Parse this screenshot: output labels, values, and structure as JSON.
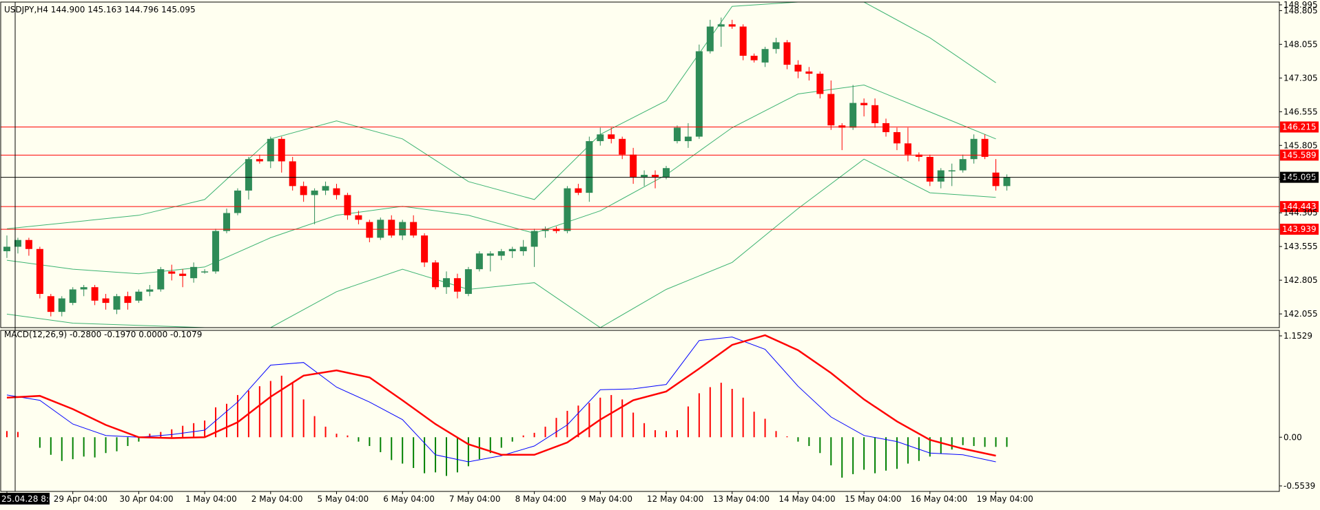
{
  "colors": {
    "background": "#fffff0",
    "bull": "#2e8b57",
    "bear": "#ff0000",
    "band": "#3cb371",
    "hline_red": "#ff0000",
    "hline_black": "#000000",
    "macd_line": "#0000ff",
    "signal_line": "#ff0000",
    "hist_pos": "#ff0000",
    "hist_neg": "#008000",
    "label_bg_red": "#ff0000",
    "label_bg_black": "#000000",
    "label_text": "#ffffff"
  },
  "chart_data": [
    {
      "type": "candlestick",
      "title": "USDJPY,H4  144.900 145.163 144.796 145.095",
      "ylim": [
        141.75,
        148.995
      ],
      "price_ticks": [
        "148.995",
        "148.805",
        "148.055",
        "147.305",
        "146.555",
        "145.805",
        "145.055",
        "144.305",
        "143.555",
        "142.805",
        "142.055"
      ],
      "x_labels": [
        {
          "i": 0,
          "label": "25.04.28 8:00"
        },
        {
          "i": 6,
          "label": "29 Apr 04:00"
        },
        {
          "i": 12,
          "label": "30 Apr 04:00"
        },
        {
          "i": 18,
          "label": "1 May 04:00"
        },
        {
          "i": 24,
          "label": "2 May 04:00"
        },
        {
          "i": 30,
          "label": "5 May 04:00"
        },
        {
          "i": 36,
          "label": "6 May 04:00"
        },
        {
          "i": 42,
          "label": "7 May 04:00"
        },
        {
          "i": 48,
          "label": "8 May 04:00"
        },
        {
          "i": 54,
          "label": "9 May 04:00"
        },
        {
          "i": 60,
          "label": "12 May 04:00"
        },
        {
          "i": 66,
          "label": "13 May 04:00"
        },
        {
          "i": 72,
          "label": "14 May 04:00"
        },
        {
          "i": 78,
          "label": "15 May 04:00"
        },
        {
          "i": 84,
          "label": "16 May 04:00"
        },
        {
          "i": 90,
          "label": "19 May 04:00"
        }
      ],
      "ohlc": [
        [
          143.45,
          143.8,
          143.3,
          143.55
        ],
        [
          143.55,
          143.75,
          143.4,
          143.7
        ],
        [
          143.7,
          143.75,
          143.35,
          143.5
        ],
        [
          143.5,
          143.55,
          142.4,
          142.5
        ],
        [
          142.45,
          142.5,
          142.0,
          142.1
        ],
        [
          142.1,
          142.45,
          142.0,
          142.4
        ],
        [
          142.3,
          142.65,
          142.25,
          142.6
        ],
        [
          142.6,
          142.7,
          142.45,
          142.65
        ],
        [
          142.65,
          142.7,
          142.25,
          142.35
        ],
        [
          142.4,
          142.5,
          142.15,
          142.3
        ],
        [
          142.15,
          142.5,
          142.05,
          142.45
        ],
        [
          142.45,
          142.55,
          142.15,
          142.3
        ],
        [
          142.35,
          142.6,
          142.3,
          142.55
        ],
        [
          142.55,
          142.7,
          142.45,
          142.6
        ],
        [
          142.6,
          143.1,
          142.55,
          143.05
        ],
        [
          143.0,
          143.15,
          142.8,
          142.95
        ],
        [
          142.95,
          143.05,
          142.65,
          142.9
        ],
        [
          142.85,
          143.2,
          142.75,
          143.1
        ],
        [
          143.0,
          143.05,
          142.95,
          143.0
        ],
        [
          143.0,
          143.95,
          142.95,
          143.9
        ],
        [
          143.9,
          144.4,
          143.85,
          144.3
        ],
        [
          144.3,
          144.85,
          144.25,
          144.8
        ],
        [
          144.8,
          145.55,
          144.6,
          145.5
        ],
        [
          145.5,
          145.6,
          145.4,
          145.45
        ],
        [
          145.45,
          146.0,
          145.3,
          145.95
        ],
        [
          145.95,
          146.0,
          145.2,
          145.45
        ],
        [
          145.45,
          145.55,
          144.8,
          144.9
        ],
        [
          144.9,
          145.0,
          144.55,
          144.7
        ],
        [
          144.7,
          144.85,
          144.05,
          144.8
        ],
        [
          144.8,
          145.0,
          144.7,
          144.9
        ],
        [
          144.85,
          144.95,
          144.6,
          144.7
        ],
        [
          144.7,
          144.75,
          144.15,
          144.25
        ],
        [
          144.25,
          144.35,
          144.05,
          144.15
        ],
        [
          144.1,
          144.15,
          143.65,
          143.75
        ],
        [
          143.75,
          144.2,
          143.7,
          144.15
        ],
        [
          144.15,
          144.25,
          143.75,
          143.8
        ],
        [
          143.8,
          144.15,
          143.7,
          144.1
        ],
        [
          144.1,
          144.25,
          143.75,
          143.8
        ],
        [
          143.8,
          143.85,
          143.1,
          143.2
        ],
        [
          143.2,
          143.25,
          142.6,
          142.65
        ],
        [
          142.65,
          143.0,
          142.5,
          142.85
        ],
        [
          142.85,
          142.95,
          142.4,
          142.55
        ],
        [
          142.5,
          143.1,
          142.45,
          143.05
        ],
        [
          143.05,
          143.45,
          143.0,
          143.4
        ],
        [
          143.35,
          143.45,
          143.0,
          143.4
        ],
        [
          143.35,
          143.5,
          143.25,
          143.45
        ],
        [
          143.45,
          143.55,
          143.3,
          143.5
        ],
        [
          143.45,
          143.7,
          143.35,
          143.55
        ],
        [
          143.55,
          143.95,
          143.1,
          143.9
        ],
        [
          143.9,
          144.0,
          143.75,
          143.95
        ],
        [
          143.95,
          144.0,
          143.85,
          143.9
        ],
        [
          143.9,
          144.9,
          143.85,
          144.85
        ],
        [
          144.85,
          144.95,
          144.7,
          144.75
        ],
        [
          144.75,
          146.0,
          144.55,
          145.9
        ],
        [
          145.9,
          146.2,
          145.8,
          146.05
        ],
        [
          146.05,
          146.2,
          145.85,
          145.95
        ],
        [
          145.95,
          146.0,
          145.5,
          145.6
        ],
        [
          145.6,
          145.75,
          144.95,
          145.1
        ],
        [
          145.1,
          145.25,
          144.9,
          145.15
        ],
        [
          145.15,
          145.25,
          144.85,
          145.1
        ],
        [
          145.1,
          145.35,
          145.05,
          145.3
        ],
        [
          145.9,
          146.25,
          145.85,
          146.2
        ],
        [
          145.9,
          146.3,
          145.75,
          146.0
        ],
        [
          146.0,
          148.05,
          145.95,
          147.9
        ],
        [
          147.9,
          148.6,
          147.85,
          148.45
        ],
        [
          148.45,
          148.65,
          148.0,
          148.5
        ],
        [
          148.5,
          148.6,
          148.4,
          148.45
        ],
        [
          148.45,
          148.5,
          147.7,
          147.8
        ],
        [
          147.8,
          147.85,
          147.65,
          147.7
        ],
        [
          147.65,
          148.0,
          147.55,
          147.95
        ],
        [
          147.95,
          148.2,
          147.85,
          148.1
        ],
        [
          148.1,
          148.15,
          147.5,
          147.6
        ],
        [
          147.6,
          147.7,
          147.3,
          147.45
        ],
        [
          147.45,
          147.55,
          147.25,
          147.4
        ],
        [
          147.4,
          147.45,
          146.85,
          146.95
        ],
        [
          146.95,
          147.25,
          146.15,
          146.25
        ],
        [
          146.25,
          146.3,
          145.7,
          146.2
        ],
        [
          146.2,
          147.15,
          146.15,
          146.75
        ],
        [
          146.75,
          146.85,
          146.45,
          146.7
        ],
        [
          146.7,
          146.85,
          146.2,
          146.3
        ],
        [
          146.3,
          146.4,
          146.0,
          146.1
        ],
        [
          146.1,
          146.2,
          145.7,
          145.85
        ],
        [
          145.85,
          146.2,
          145.45,
          145.6
        ],
        [
          145.6,
          145.65,
          145.45,
          145.55
        ],
        [
          145.55,
          145.6,
          144.9,
          145.0
        ],
        [
          145.0,
          145.3,
          144.85,
          145.25
        ],
        [
          145.25,
          145.4,
          144.9,
          145.25
        ],
        [
          145.25,
          145.6,
          145.2,
          145.5
        ],
        [
          145.5,
          146.05,
          145.4,
          145.95
        ],
        [
          145.95,
          146.05,
          145.5,
          145.55
        ],
        [
          145.2,
          145.5,
          144.8,
          144.9
        ],
        [
          144.9,
          145.16,
          144.8,
          145.1
        ]
      ],
      "bollinger": {
        "upper": [
          [
            0,
            143.95
          ],
          [
            12,
            144.25
          ],
          [
            18,
            144.6
          ],
          [
            24,
            145.95
          ],
          [
            30,
            146.35
          ],
          [
            36,
            145.95
          ],
          [
            42,
            145.0
          ],
          [
            48,
            144.6
          ],
          [
            54,
            146.05
          ],
          [
            60,
            146.8
          ],
          [
            66,
            148.9
          ],
          [
            72,
            149.2
          ],
          [
            78,
            149.0
          ],
          [
            84,
            148.2
          ],
          [
            90,
            147.2
          ]
        ],
        "middle": [
          [
            0,
            143.25
          ],
          [
            6,
            143.05
          ],
          [
            12,
            142.95
          ],
          [
            18,
            143.1
          ],
          [
            24,
            143.75
          ],
          [
            30,
            144.25
          ],
          [
            36,
            144.45
          ],
          [
            42,
            144.25
          ],
          [
            48,
            143.85
          ],
          [
            54,
            144.35
          ],
          [
            60,
            145.15
          ],
          [
            66,
            146.2
          ],
          [
            72,
            146.95
          ],
          [
            78,
            147.15
          ],
          [
            84,
            146.55
          ],
          [
            90,
            145.95
          ]
        ],
        "lower": [
          [
            0,
            142.05
          ],
          [
            6,
            141.85
          ],
          [
            12,
            141.8
          ],
          [
            18,
            141.7
          ],
          [
            24,
            141.6
          ],
          [
            30,
            142.55
          ],
          [
            36,
            143.05
          ],
          [
            42,
            142.6
          ],
          [
            48,
            142.75
          ],
          [
            54,
            141.7
          ],
          [
            60,
            142.6
          ],
          [
            66,
            143.2
          ],
          [
            72,
            144.4
          ],
          [
            78,
            145.5
          ],
          [
            84,
            144.75
          ],
          [
            90,
            144.65
          ]
        ]
      },
      "hlines": [
        {
          "price": 146.215,
          "label": "146.215",
          "color": "#ff0000"
        },
        {
          "price": 145.589,
          "label": "145.589",
          "color": "#ff0000"
        },
        {
          "price": 145.095,
          "label": "145.095",
          "color": "#000000"
        },
        {
          "price": 144.443,
          "label": "144.443",
          "color": "#ff0000"
        },
        {
          "price": 143.939,
          "label": "143.939",
          "color": "#ff0000"
        }
      ]
    },
    {
      "type": "macd",
      "title": "MACD(12,26,9) -0.2800 -0.1970 0.0000 -0.1079",
      "ylim": [
        -0.5539,
        1.1529
      ],
      "ticks": [
        "1.1529",
        "0.00",
        "-0.5539"
      ],
      "tick_values": [
        1.1529,
        0.0,
        -0.5539
      ],
      "macd": [
        [
          0,
          0.48
        ],
        [
          3,
          0.42
        ],
        [
          6,
          0.15
        ],
        [
          9,
          0.02
        ],
        [
          12,
          0.0
        ],
        [
          15,
          0.03
        ],
        [
          18,
          0.08
        ],
        [
          21,
          0.4
        ],
        [
          24,
          0.82
        ],
        [
          27,
          0.85
        ],
        [
          30,
          0.57
        ],
        [
          33,
          0.4
        ],
        [
          36,
          0.2
        ],
        [
          39,
          -0.2
        ],
        [
          42,
          -0.28
        ],
        [
          45,
          -0.21
        ],
        [
          48,
          -0.1
        ],
        [
          51,
          0.14
        ],
        [
          54,
          0.54
        ],
        [
          57,
          0.55
        ],
        [
          60,
          0.6
        ],
        [
          63,
          1.1
        ],
        [
          66,
          1.14
        ],
        [
          69,
          1.0
        ],
        [
          72,
          0.58
        ],
        [
          75,
          0.23
        ],
        [
          78,
          0.02
        ],
        [
          81,
          -0.05
        ],
        [
          84,
          -0.18
        ],
        [
          87,
          -0.2
        ],
        [
          90,
          -0.28
        ]
      ],
      "signal": [
        [
          0,
          0.45
        ],
        [
          3,
          0.47
        ],
        [
          6,
          0.32
        ],
        [
          9,
          0.14
        ],
        [
          12,
          0.0
        ],
        [
          15,
          -0.01
        ],
        [
          18,
          0.0
        ],
        [
          21,
          0.17
        ],
        [
          24,
          0.46
        ],
        [
          27,
          0.7
        ],
        [
          30,
          0.76
        ],
        [
          33,
          0.68
        ],
        [
          36,
          0.42
        ],
        [
          39,
          0.15
        ],
        [
          42,
          -0.08
        ],
        [
          45,
          -0.2
        ],
        [
          48,
          -0.2
        ],
        [
          51,
          -0.06
        ],
        [
          54,
          0.2
        ],
        [
          57,
          0.42
        ],
        [
          60,
          0.52
        ],
        [
          63,
          0.78
        ],
        [
          66,
          1.05
        ],
        [
          69,
          1.16
        ],
        [
          72,
          0.99
        ],
        [
          75,
          0.73
        ],
        [
          78,
          0.43
        ],
        [
          81,
          0.18
        ],
        [
          84,
          -0.03
        ],
        [
          87,
          -0.13
        ],
        [
          90,
          -0.21
        ]
      ],
      "histogram": [
        0.07,
        0.06,
        0.0,
        -0.12,
        -0.2,
        -0.27,
        -0.25,
        -0.22,
        -0.23,
        -0.18,
        -0.16,
        -0.1,
        -0.05,
        0.04,
        0.06,
        0.09,
        0.13,
        0.16,
        0.19,
        0.34,
        0.38,
        0.48,
        0.53,
        0.58,
        0.64,
        0.7,
        0.62,
        0.43,
        0.24,
        0.12,
        0.04,
        0.02,
        -0.05,
        -0.1,
        -0.17,
        -0.26,
        -0.3,
        -0.35,
        -0.41,
        -0.4,
        -0.44,
        -0.4,
        -0.33,
        -0.25,
        -0.18,
        -0.12,
        -0.05,
        0.02,
        0.05,
        0.12,
        0.22,
        0.3,
        0.36,
        0.39,
        0.45,
        0.48,
        0.43,
        0.28,
        0.16,
        0.08,
        0.07,
        0.08,
        0.35,
        0.5,
        0.57,
        0.62,
        0.55,
        0.45,
        0.29,
        0.21,
        0.07,
        0.01,
        -0.05,
        -0.1,
        -0.18,
        -0.32,
        -0.46,
        -0.42,
        -0.37,
        -0.41,
        -0.38,
        -0.36,
        -0.3,
        -0.27,
        -0.22,
        -0.19,
        -0.14,
        -0.09,
        -0.1,
        -0.11,
        -0.11,
        -0.11
      ]
    }
  ]
}
